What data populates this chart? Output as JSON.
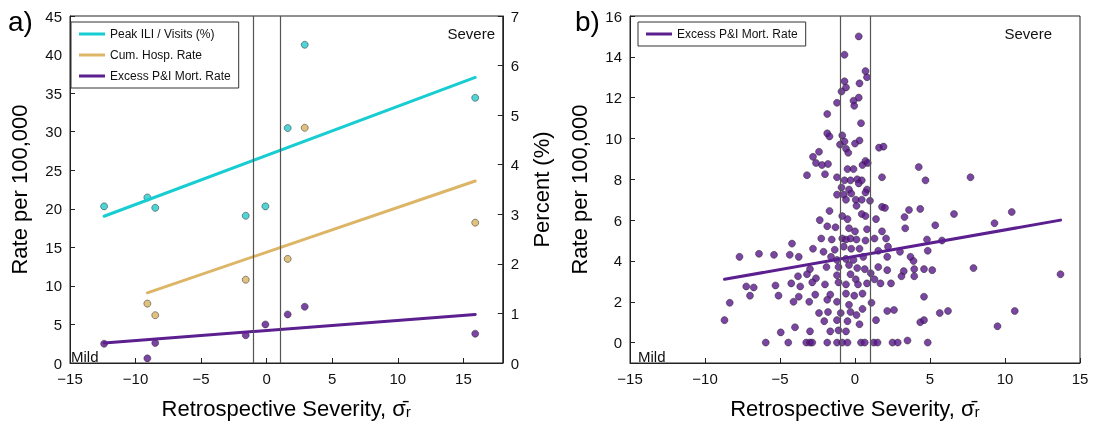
{
  "chart_data": [
    {
      "type": "scatter",
      "title": "a)",
      "xlabel": "Retrospective Severity, σ̄ᵣ",
      "ylabel": "Rate per 100,000",
      "y2label": "Percent (%)",
      "annotations": [
        "Severe",
        "Mild"
      ],
      "legend": "top left",
      "xlim": [
        -15,
        18
      ],
      "xticks": [
        -15,
        -10,
        -5,
        0,
        5,
        10,
        15
      ],
      "ylim": [
        0,
        45
      ],
      "yticks": [
        0,
        5,
        10,
        15,
        20,
        25,
        30,
        35,
        40,
        45
      ],
      "y2lim": [
        0,
        7
      ],
      "y2ticks": [
        0,
        1,
        2,
        3,
        4,
        5,
        6,
        7
      ],
      "ref_lines": [
        {
          "axis": "x",
          "value": -1,
          "color": "#555555"
        },
        {
          "axis": "x",
          "value": 1,
          "color": "#555555"
        }
      ],
      "series": [
        {
          "type": "scatter",
          "marker": "circle",
          "color": "#26c9cc",
          "axis": "y2",
          "x": [
            -12.4,
            -9.1,
            -8.5,
            -1.6,
            -0.1,
            1.6,
            2.9,
            15.9
          ],
          "values": [
            3.16,
            3.34,
            3.13,
            2.97,
            3.16,
            4.74,
            6.42,
            5.35
          ]
        },
        {
          "type": "scatter",
          "marker": "circle",
          "color": "#d9b15f",
          "x": [
            -9.1,
            -8.5,
            -1.6,
            1.6,
            2.9,
            15.9
          ],
          "values": [
            7.7,
            6.2,
            10.8,
            13.5,
            30.5,
            18.2
          ]
        },
        {
          "type": "scatter",
          "marker": "circle",
          "color": "#5a178c",
          "x": [
            -12.4,
            -9.1,
            -8.5,
            -1.6,
            -0.1,
            1.6,
            2.9,
            15.9
          ],
          "values": [
            2.5,
            0.6,
            2.6,
            3.6,
            5.0,
            6.3,
            7.3,
            3.8
          ]
        },
        {
          "type": "line",
          "name": "Peak ILI / Visits (%)",
          "marker": "none",
          "color": "#17cdd2",
          "axis": "y2",
          "x": [
            -12.4,
            15.9
          ],
          "values": [
            2.96,
            5.76
          ]
        },
        {
          "type": "line",
          "name": "Cum. Hosp. Rate",
          "marker": "none",
          "color": "#ddb566",
          "x": [
            -9.1,
            15.9
          ],
          "values": [
            9.1,
            23.6
          ]
        },
        {
          "type": "line",
          "name": "Excess P&I Mort. Rate",
          "marker": "none",
          "color": "#5b1f8f",
          "x": [
            -12.4,
            15.9
          ],
          "values": [
            2.6,
            6.3
          ]
        }
      ]
    },
    {
      "type": "scatter",
      "title": "b)",
      "xlabel": "Retrospective Severity, σ̄ᵣ",
      "ylabel": "Rate per 100,000",
      "annotations": [
        "Severe",
        "Mild"
      ],
      "legend": "top left",
      "xlim": [
        -15,
        15
      ],
      "xticks": [
        -15,
        -10,
        -5,
        0,
        5,
        10,
        15
      ],
      "ylim": [
        -1,
        16
      ],
      "yticks": [
        0,
        2,
        4,
        6,
        8,
        10,
        12,
        14,
        16
      ],
      "ref_lines": [
        {
          "axis": "x",
          "value": -1,
          "color": "#555555"
        },
        {
          "axis": "x",
          "value": 1,
          "color": "#555555"
        }
      ],
      "series": [
        {
          "type": "scatter",
          "marker": "circle",
          "color": "#5a178c",
          "x": [
            0.25,
            -0.7,
            0.7,
            0.8,
            -0.7,
            0.3,
            -0.6,
            -0.9,
            0.25,
            -0.1,
            -0.05,
            -1.2,
            -1.85,
            0.4,
            -1.85,
            -1.7,
            -0.85,
            0.3,
            0,
            -0.7,
            -1.0,
            1.6,
            1.9,
            -0.6,
            -0.45,
            -2.4,
            -2.8,
            -2.6,
            -2.2,
            -1.8,
            0.5,
            0.7,
            0.85,
            -0.5,
            -0.1,
            4.25,
            7.7,
            -3.2,
            -2.0,
            -1.2,
            -0.7,
            -0.3,
            0.15,
            0.45,
            1.8,
            4.7,
            -0.9,
            -0.4,
            0.8,
            0.25,
            -1.2,
            -0.75,
            -0.25,
            0.7,
            -0.6,
            0.05,
            0.45,
            1.0,
            0.1,
            1.8,
            2.0,
            3.6,
            4.35,
            6.6,
            10.45,
            -1.7,
            0.45,
            0.7,
            1.4,
            -0.85,
            -0.5,
            -2.35,
            3.3,
            9.3,
            5.35,
            -1.85,
            -1.3,
            -0.4,
            0.8,
            3.35,
            1.8,
            0,
            -2.25,
            -1.55,
            -0.85,
            -0.6,
            -0.3,
            0.1,
            0.7,
            1.3,
            2.07,
            -4.2,
            4.8,
            5.8,
            -2.8,
            -2.1,
            -1.35,
            -0.75,
            -0.25,
            0.3,
            1.55,
            2.2,
            3.0,
            4.85,
            -7.7,
            -6.4,
            -5.4,
            -4.35,
            -3.75,
            -1.6,
            -1.2,
            -0.6,
            -0.1,
            0.55,
            2.15,
            3.7,
            3.9,
            -3.0,
            -1.9,
            -1.1,
            -0.4,
            0.15,
            0.65,
            1.55,
            2.15,
            3.25,
            3.95,
            4.6,
            5.15,
            7.9,
            13.7,
            -3.8,
            -3.2,
            -2.6,
            -1.2,
            -0.3,
            0.05,
            1.05,
            1.3,
            3.1,
            3.95,
            -7.25,
            -6.75,
            -5.3,
            -4.25,
            -3.65,
            -2.85,
            -2.0,
            -1.1,
            -0.6,
            0.2,
            0.8,
            1.7,
            2.4,
            -7.0,
            -5.1,
            -3.75,
            -2.65,
            -1.65,
            -0.6,
            -0.05,
            0.5,
            4.6,
            -8.35,
            -4.1,
            -3.05,
            -1.85,
            -1.2,
            -0.4,
            1.1,
            -2.4,
            -1.8,
            -0.95,
            -0.3,
            0.1,
            0.5,
            2.15,
            2.6,
            5.65,
            6.2,
            10.65,
            -8.7,
            -2.05,
            -1.2,
            -0.5,
            0.3,
            1.4,
            4.35,
            4.6,
            -4.0,
            -4.95,
            -3.0,
            -1.65,
            -1.1,
            -0.6,
            9.5,
            -5.95,
            -4.45,
            -3.25,
            -3.0,
            -2.85,
            -1.85,
            -1.2,
            -0.85,
            -0.5,
            0.4,
            0.65,
            1.25,
            1.5,
            2.5,
            2.85,
            3.5,
            4.85
          ],
          "values": [
            15.0,
            14.1,
            13.3,
            13.0,
            12.8,
            12.7,
            12.5,
            12.3,
            12.0,
            11.85,
            11.6,
            11.75,
            11.2,
            10.75,
            10.25,
            10.1,
            10.15,
            9.9,
            9.75,
            9.85,
            9.7,
            9.55,
            9.6,
            9.5,
            9.3,
            9.35,
            9.1,
            8.8,
            8.7,
            8.75,
            8.7,
            8.9,
            8.8,
            8.5,
            8.5,
            8.6,
            8.1,
            8.2,
            8.25,
            8.1,
            7.95,
            7.95,
            8.0,
            7.95,
            8.1,
            7.95,
            7.6,
            7.5,
            7.5,
            7.8,
            7.25,
            7.25,
            7.3,
            7.35,
            7.0,
            7.0,
            7.0,
            6.95,
            6.7,
            6.65,
            6.6,
            6.5,
            6.55,
            6.3,
            6.4,
            6.45,
            6.3,
            6.2,
            6.05,
            6.2,
            6.05,
            6.0,
            6.15,
            5.85,
            5.75,
            5.7,
            5.65,
            5.6,
            5.55,
            5.6,
            5.45,
            5.45,
            5.1,
            5.05,
            5.1,
            5.05,
            5.1,
            5.05,
            5.0,
            5.1,
            5.1,
            4.85,
            5.05,
            5.0,
            4.6,
            4.45,
            4.55,
            4.7,
            4.6,
            4.6,
            4.5,
            4.7,
            4.45,
            4.5,
            4.2,
            4.35,
            4.3,
            4.3,
            4.2,
            4.2,
            4.05,
            4.1,
            4.05,
            4.2,
            4.2,
            4.2,
            4.0,
            3.6,
            3.7,
            3.7,
            3.8,
            3.65,
            3.6,
            3.7,
            3.55,
            3.5,
            3.6,
            3.6,
            3.55,
            3.65,
            3.35,
            3.25,
            3.35,
            3.15,
            3.3,
            3.35,
            3.1,
            3.4,
            3.1,
            3.25,
            3.25,
            2.75,
            2.7,
            2.8,
            2.9,
            2.75,
            2.95,
            2.85,
            2.95,
            2.85,
            2.85,
            2.9,
            2.9,
            2.9,
            2.3,
            2.3,
            2.25,
            2.35,
            2.35,
            2.4,
            2.3,
            2.4,
            2.25,
            1.95,
            2.0,
            2.0,
            2.1,
            2.0,
            1.85,
            1.95,
            1.45,
            1.5,
            1.45,
            1.5,
            1.35,
            1.65,
            1.55,
            1.6,
            1.45,
            1.55,
            1.55,
            1.1,
            1.05,
            1.1,
            1.05,
            0.9,
            1.1,
            1.0,
            1.1,
            0.75,
            0.5,
            0.55,
            0.55,
            0.6,
            0.55,
            0.8,
            0,
            0,
            0,
            0,
            0,
            0,
            0,
            0,
            0,
            0,
            0,
            0,
            0,
            0,
            0,
            0.1,
            0
          ]
        },
        {
          "type": "line",
          "name": "Excess P&I Mort. Rate",
          "marker": "none",
          "color": "#5b1f8f",
          "x": [
            -8.7,
            13.7
          ],
          "values": [
            3.1,
            6.0
          ]
        }
      ]
    }
  ]
}
